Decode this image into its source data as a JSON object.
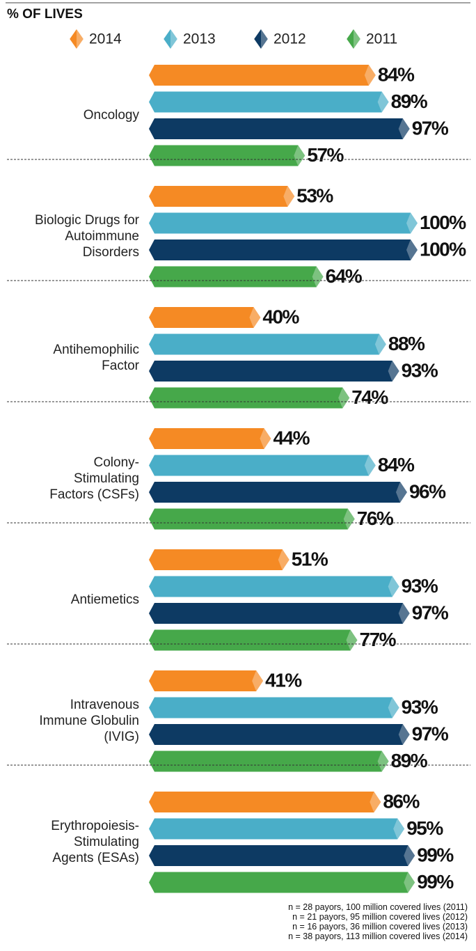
{
  "chart_data": {
    "type": "bar",
    "orientation": "horizontal",
    "title": "% OF LIVES",
    "categories": [
      "Oncology",
      "Biologic Drugs for Autoimmune Disorders",
      "Antihemophilic Factor",
      "Colony-Stimulating Factors (CSFs)",
      "Antiemetics",
      "Intravenous Immune Globulin (IVIG)",
      "Erythropoiesis-Stimulating Agents (ESAs)"
    ],
    "xlim": [
      0,
      100
    ],
    "series": [
      {
        "name": "2014",
        "color": "#f58a24",
        "values": [
          84,
          53,
          40,
          44,
          51,
          41,
          86
        ],
        "value_labels": [
          "84%",
          "53%",
          "40%",
          "44%",
          "51%",
          "41%",
          "86%"
        ]
      },
      {
        "name": "2013",
        "color": "#4aaec8",
        "values": [
          89,
          100,
          88,
          84,
          93,
          93,
          95
        ],
        "value_labels": [
          "89%",
          "100%",
          "88%",
          "84%",
          "93%",
          "93%",
          "95%"
        ]
      },
      {
        "name": "2012",
        "color": "#0d3a63",
        "values": [
          97,
          100,
          93,
          96,
          97,
          97,
          99
        ],
        "value_labels": [
          "97%",
          "100%",
          "93%",
          "96%",
          "97%",
          "97%",
          "99%"
        ]
      },
      {
        "name": "2011",
        "color": "#46a84a",
        "values": [
          57,
          64,
          74,
          76,
          77,
          89,
          99
        ],
        "value_labels": [
          "57%",
          "64%",
          "74%",
          "76%",
          "77%",
          "89%",
          "99%"
        ]
      }
    ],
    "footnotes": [
      "n = 28 payors, 100 million covered lives (2011)",
      "n = 21 payors, 95 million covered lives (2012)",
      "n = 16 payors, 36 million covered lives (2013)",
      "n = 38 payors, 113 million covered lives (2014)"
    ]
  }
}
